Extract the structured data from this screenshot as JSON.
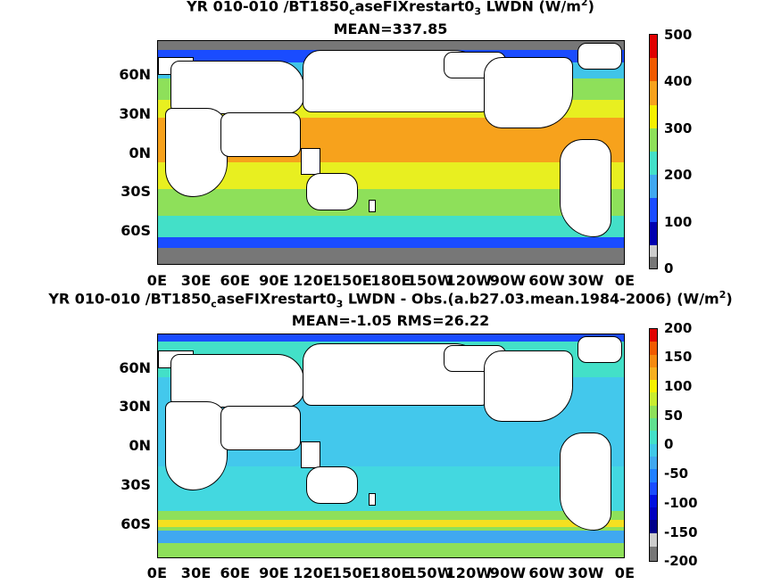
{
  "panel1": {
    "title_line1_a": "YR 010-010 /BT1850",
    "title_line1_sub": "c",
    "title_line1_b": "aseFIXrestart0",
    "title_line1_sub2": "3",
    "title_line1_c": " LWDN (W/m",
    "title_line1_sup": "2",
    "title_line1_d": ")",
    "title_line2": "MEAN=337.85",
    "colorbar_ticks": [
      "500",
      "400",
      "300",
      "200",
      "100",
      "0"
    ]
  },
  "panel2": {
    "title_line1_a": "YR 010-010 /BT1850",
    "title_line1_sub": "c",
    "title_line1_b": "aseFIXrestart0",
    "title_line1_sub2": "3",
    "title_line1_c": " LWDN - Obs.(a.b27.03.mean.1984-2006) (W/m",
    "title_line1_sup": "2",
    "title_line1_d": ")",
    "title_line2": "MEAN=-1.05 RMS=26.22",
    "colorbar_ticks": [
      "200",
      "150",
      "100",
      "50",
      "0",
      "-50",
      "-100",
      "-150",
      "-200"
    ]
  },
  "lat_labels": [
    "60N",
    "30N",
    "0N",
    "30S",
    "60S"
  ],
  "lon_labels": [
    "0E",
    "30E",
    "60E",
    "90E",
    "120E",
    "150E",
    "180E",
    "150W",
    "120W",
    "90W",
    "60W",
    "30W",
    "0E"
  ],
  "colors": {
    "warm_orange": "#f7a21c",
    "yellow": "#f5f000",
    "green": "#8ee05a",
    "cyan": "#43e0c8",
    "light_blue": "#40c4e8",
    "blue": "#1a4cff",
    "dark_blue": "#0000b0",
    "ice_gray": "#777777"
  }
}
